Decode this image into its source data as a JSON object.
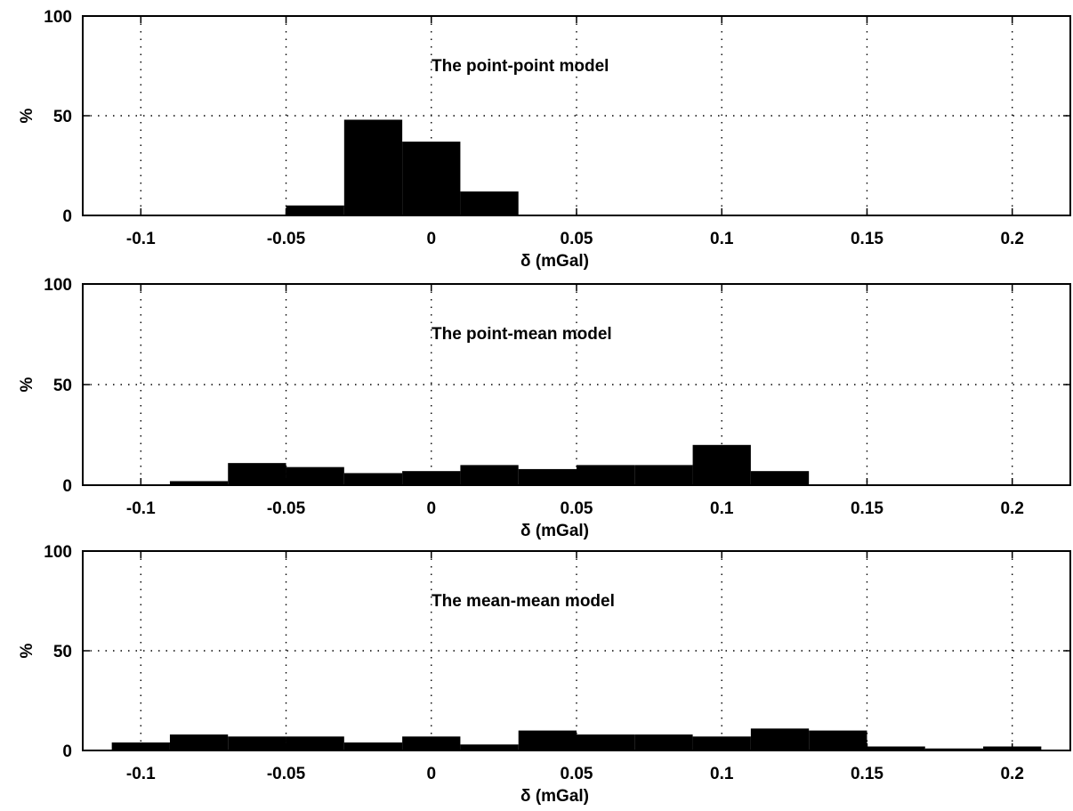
{
  "chart_data": [
    {
      "type": "bar",
      "title": "The point-point model",
      "xlabel": "δ (mGal)",
      "ylabel": "%",
      "xlim": [
        -0.12,
        0.22
      ],
      "ylim": [
        0,
        100
      ],
      "xticks": [
        -0.1,
        -0.05,
        0,
        0.05,
        0.1,
        0.15,
        0.2
      ],
      "xtick_labels": [
        "-0.1",
        "-0.05",
        "0",
        "0.05",
        "0.1",
        "0.15",
        "0.2"
      ],
      "yticks": [
        0,
        50,
        100
      ],
      "ytick_labels": [
        "0",
        "50",
        "100"
      ],
      "grid": true,
      "bin_width": 0.02,
      "bin_centers": [
        -0.04,
        -0.02,
        0.0,
        0.02
      ],
      "values": [
        5,
        48,
        37,
        12
      ]
    },
    {
      "type": "bar",
      "title": "The point-mean model",
      "xlabel": "δ (mGal)",
      "ylabel": "%",
      "xlim": [
        -0.12,
        0.22
      ],
      "ylim": [
        0,
        100
      ],
      "xticks": [
        -0.1,
        -0.05,
        0,
        0.05,
        0.1,
        0.15,
        0.2
      ],
      "xtick_labels": [
        "-0.1",
        "-0.05",
        "0",
        "0.05",
        "0.1",
        "0.15",
        "0.2"
      ],
      "yticks": [
        0,
        50,
        100
      ],
      "ytick_labels": [
        "0",
        "50",
        "100"
      ],
      "grid": true,
      "bin_width": 0.02,
      "bin_centers": [
        -0.08,
        -0.06,
        -0.04,
        -0.02,
        0.0,
        0.02,
        0.04,
        0.06,
        0.08,
        0.1,
        0.12
      ],
      "values": [
        2,
        11,
        9,
        6,
        7,
        10,
        8,
        10,
        10,
        20,
        7
      ]
    },
    {
      "type": "bar",
      "title": "The mean-mean model",
      "xlabel": "δ (mGal)",
      "ylabel": "%",
      "xlim": [
        -0.12,
        0.22
      ],
      "ylim": [
        0,
        100
      ],
      "xticks": [
        -0.1,
        -0.05,
        0,
        0.05,
        0.1,
        0.15,
        0.2
      ],
      "xtick_labels": [
        "-0.1",
        "-0.05",
        "0",
        "0.05",
        "0.1",
        "0.15",
        "0.2"
      ],
      "yticks": [
        0,
        50,
        100
      ],
      "ytick_labels": [
        "0",
        "50",
        "100"
      ],
      "grid": true,
      "bin_width": 0.02,
      "bin_centers": [
        -0.1,
        -0.08,
        -0.06,
        -0.04,
        -0.02,
        0.0,
        0.02,
        0.04,
        0.06,
        0.08,
        0.1,
        0.12,
        0.14,
        0.16,
        0.18,
        0.2
      ],
      "values": [
        4,
        8,
        7,
        7,
        4,
        7,
        3,
        10,
        8,
        8,
        7,
        11,
        10,
        2,
        1,
        2
      ]
    }
  ]
}
